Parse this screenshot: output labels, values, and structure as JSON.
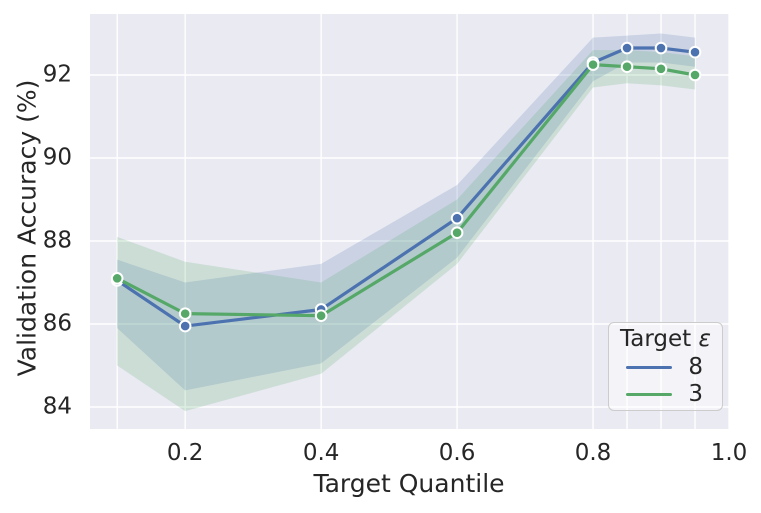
{
  "chart_data": {
    "type": "line",
    "title": "",
    "xlabel": "Target Quantile",
    "ylabel": "Validation Accuracy (%)",
    "x": [
      0.1,
      0.2,
      0.4,
      0.6,
      0.8,
      0.85,
      0.9,
      0.95
    ],
    "series": [
      {
        "name": "8",
        "color": "#4C72B0",
        "values": [
          87.05,
          85.95,
          86.35,
          88.55,
          92.3,
          92.65,
          92.65,
          92.55
        ],
        "ci_low": [
          85.9,
          84.4,
          85.05,
          87.6,
          91.85,
          92.3,
          92.3,
          92.2
        ],
        "ci_high": [
          87.55,
          87.0,
          87.45,
          89.35,
          92.9,
          92.95,
          93.0,
          92.9
        ]
      },
      {
        "name": "3",
        "color": "#55A868",
        "values": [
          87.1,
          86.25,
          86.2,
          88.2,
          92.25,
          92.2,
          92.15,
          92.0
        ],
        "ci_low": [
          85.0,
          83.9,
          84.8,
          87.45,
          91.7,
          91.8,
          91.75,
          91.65
        ],
        "ci_high": [
          88.1,
          87.5,
          87.0,
          89.0,
          92.6,
          92.6,
          92.55,
          92.45
        ]
      }
    ],
    "xlim": [
      0.06,
      1.0
    ],
    "ylim": [
      83.47,
      93.47
    ],
    "x_gridlines": [
      0.1,
      0.2,
      0.4,
      0.6,
      0.8,
      0.85,
      0.9,
      0.95,
      1.0
    ],
    "y_gridlines": [
      84,
      86,
      88,
      90,
      92
    ],
    "x_ticks": [
      {
        "v": 0.2,
        "label": "0.2"
      },
      {
        "v": 0.4,
        "label": "0.4"
      },
      {
        "v": 0.6,
        "label": "0.6"
      },
      {
        "v": 0.8,
        "label": "0.8"
      },
      {
        "v": 1.0,
        "label": "1.0"
      }
    ],
    "y_ticks": [
      {
        "v": 84,
        "label": "84"
      },
      {
        "v": 86,
        "label": "86"
      },
      {
        "v": 88,
        "label": "88"
      },
      {
        "v": 90,
        "label": "90"
      },
      {
        "v": 92,
        "label": "92"
      }
    ],
    "legend": {
      "title_text": "Target ",
      "title_symbol": "ε",
      "position": "lower right",
      "entries": [
        "8",
        "3"
      ]
    },
    "style": {
      "background": "#EAEAF2",
      "grid_color": "#FFFFFF",
      "band_opacity": 0.2,
      "line_width": 3.2,
      "marker_radius": 5.3,
      "marker_edge": "#FFFFFF"
    }
  }
}
